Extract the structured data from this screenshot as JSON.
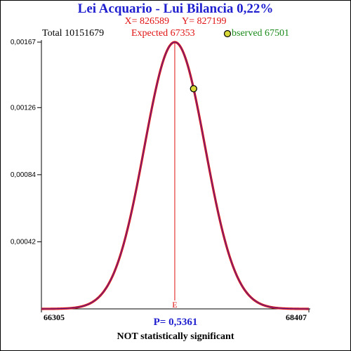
{
  "header": {
    "title": "Lei Acquario - Lui Bilancia  0,22%",
    "x_label": "X= 826589",
    "y_label": "Y= 827199",
    "total": "Total  10151679",
    "expected": "Expected  67353",
    "observed": "bserved  67501"
  },
  "footer": {
    "p_value": "P= 0,5361",
    "verdict": "NOT statistically significant"
  },
  "colors": {
    "title": "#1f1fd0",
    "curve_outer": "#dd1111",
    "curve_inner": "#3a2ab0",
    "expected_line": "#e01010",
    "observed_marker": "#d8d838",
    "observed_text": "#1a8a1a"
  },
  "chart_data": {
    "type": "line",
    "series": [
      {
        "x": [
          66305,
          66705,
          66905,
          67053,
          67153,
          67253,
          67303,
          67353,
          67403,
          67453,
          67501,
          67553,
          67653,
          67753,
          67953,
          68407
        ],
        "y": [
          0.0,
          1e-06,
          3e-05,
          0.00029,
          0.00067,
          0.00125,
          0.00152,
          0.00167,
          0.00152,
          0.00125,
          0.00134,
          0.00067,
          0.00029,
          3e-05,
          2e-07,
          0.0
        ]
      }
    ],
    "expected": {
      "value": 67353,
      "label": "E"
    },
    "observed": {
      "value": 67501,
      "density": 0.00134
    },
    "xlim": [
      66305,
      68407
    ],
    "ylim": [
      0,
      0.00167
    ],
    "x_ticks": [
      {
        "value": 66305,
        "label": "66305"
      },
      {
        "value": 68407,
        "label": "68407"
      }
    ],
    "y_ticks": [
      {
        "value": 0.00042,
        "label": "0,00042"
      },
      {
        "value": 0.00084,
        "label": "0,00084"
      },
      {
        "value": 0.00126,
        "label": "0,00126"
      },
      {
        "value": 0.00167,
        "label": "0,00167"
      }
    ],
    "grid": false
  }
}
